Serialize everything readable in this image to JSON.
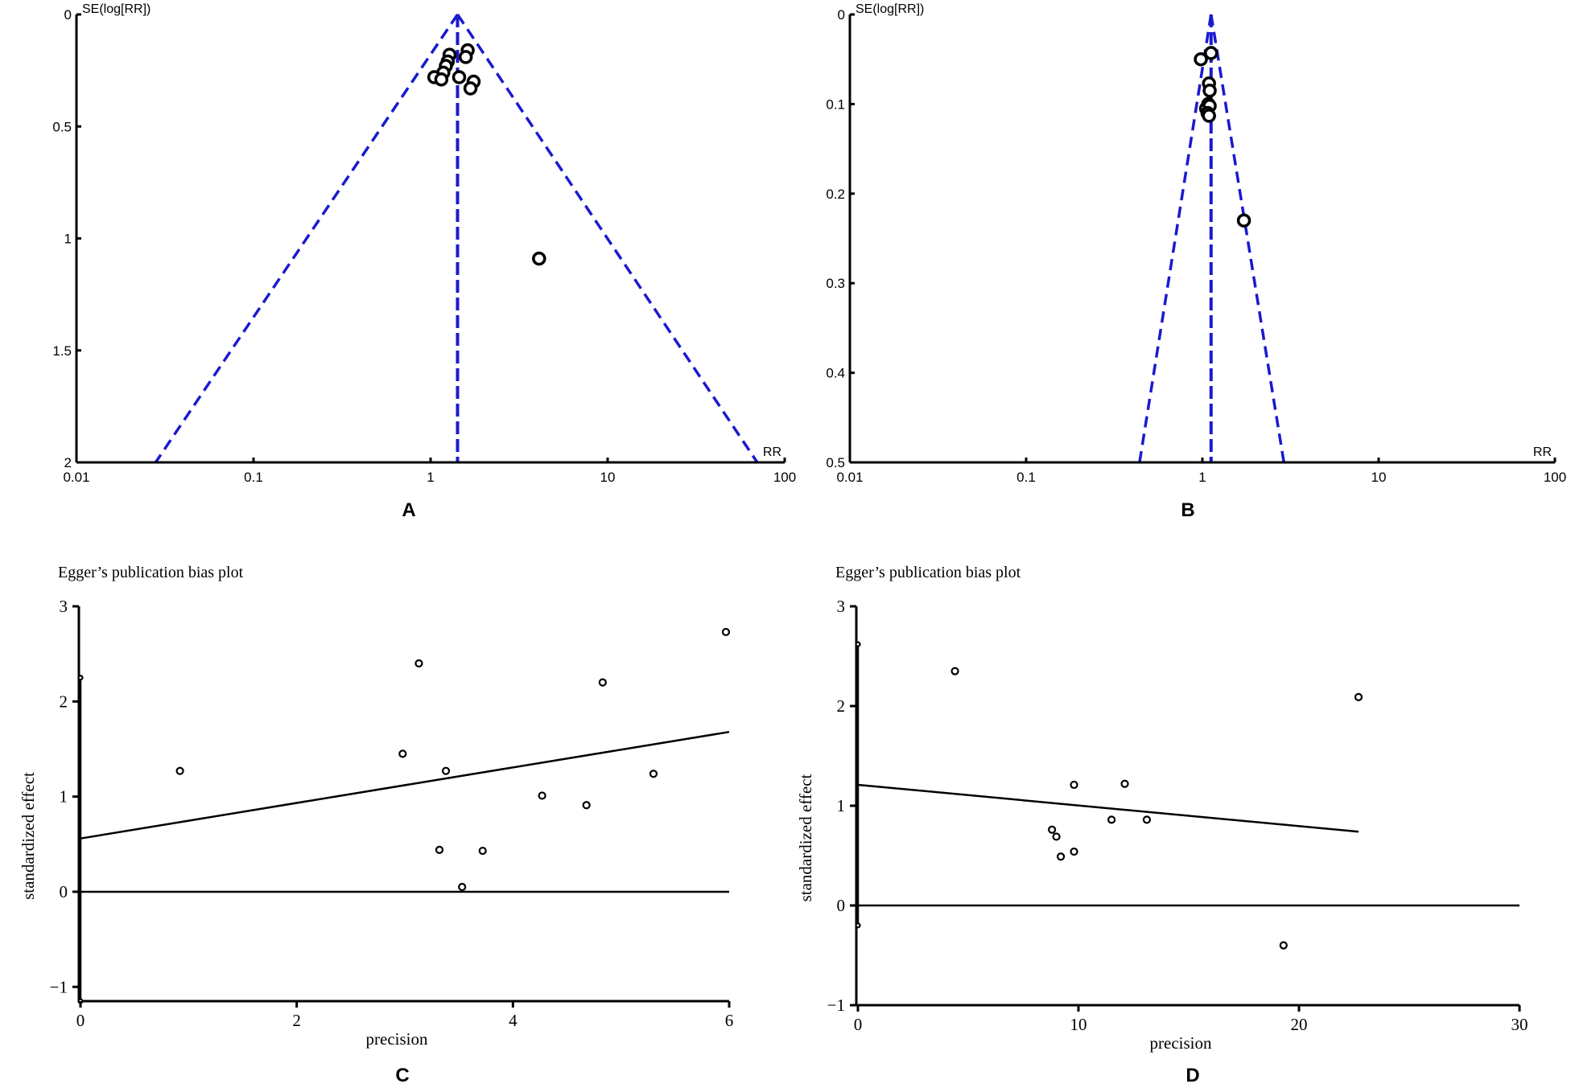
{
  "chart_data": [
    {
      "id": "A",
      "panel_label": "A",
      "type": "scatter",
      "subtype": "funnel",
      "title": "",
      "ylabel": "SE(log[RR])",
      "xlabel": "RR",
      "x_scale": "log",
      "xlim": [
        0.01,
        100
      ],
      "ylim": [
        0,
        2
      ],
      "y_inverted": true,
      "x_ticks": [
        0.01,
        0.1,
        1,
        10,
        100
      ],
      "x_tick_labels": [
        "0.01",
        "0.1",
        "1",
        "10",
        "100"
      ],
      "y_ticks": [
        0,
        0.5,
        1,
        1.5,
        2
      ],
      "y_tick_labels": [
        "0",
        "0.5",
        "1",
        "1.5",
        "2"
      ],
      "pooled_rr": 1.42,
      "funnel": {
        "apex": [
          1.42,
          0
        ],
        "lower_left": [
          0.028,
          2
        ],
        "lower_right": [
          70,
          2
        ]
      },
      "points": [
        {
          "rr": 1.62,
          "se": 0.16
        },
        {
          "rr": 1.28,
          "se": 0.18
        },
        {
          "rr": 1.25,
          "se": 0.21
        },
        {
          "rr": 1.58,
          "se": 0.19
        },
        {
          "rr": 1.22,
          "se": 0.23
        },
        {
          "rr": 1.18,
          "se": 0.26
        },
        {
          "rr": 1.05,
          "se": 0.28
        },
        {
          "rr": 1.15,
          "se": 0.29
        },
        {
          "rr": 1.45,
          "se": 0.28
        },
        {
          "rr": 1.75,
          "se": 0.3
        },
        {
          "rr": 1.68,
          "se": 0.33
        },
        {
          "rr": 4.1,
          "se": 1.09
        }
      ]
    },
    {
      "id": "B",
      "panel_label": "B",
      "type": "scatter",
      "subtype": "funnel",
      "title": "",
      "ylabel": "SE(log[RR])",
      "xlabel": "RR",
      "x_scale": "log",
      "xlim": [
        0.01,
        100
      ],
      "ylim": [
        0,
        0.5
      ],
      "y_inverted": true,
      "x_ticks": [
        0.01,
        0.1,
        1,
        10,
        100
      ],
      "x_tick_labels": [
        "0.01",
        "0.1",
        "1",
        "10",
        "100"
      ],
      "y_ticks": [
        0,
        0.1,
        0.2,
        0.3,
        0.4,
        0.5
      ],
      "y_tick_labels": [
        "0",
        "0.1",
        "0.2",
        "0.3",
        "0.4",
        "0.5"
      ],
      "pooled_rr": 1.12,
      "funnel": {
        "apex": [
          1.12,
          0
        ],
        "lower_left": [
          0.44,
          0.5
        ],
        "lower_right": [
          2.9,
          0.5
        ]
      },
      "points": [
        {
          "rr": 0.98,
          "se": 0.05
        },
        {
          "rr": 1.12,
          "se": 0.043
        },
        {
          "rr": 1.09,
          "se": 0.077
        },
        {
          "rr": 1.1,
          "se": 0.085
        },
        {
          "rr": 1.08,
          "se": 0.1
        },
        {
          "rr": 1.05,
          "se": 0.105
        },
        {
          "rr": 1.1,
          "se": 0.102
        },
        {
          "rr": 1.07,
          "se": 0.11
        },
        {
          "rr": 1.09,
          "se": 0.113
        },
        {
          "rr": 1.72,
          "se": 0.23
        }
      ]
    },
    {
      "id": "C",
      "panel_label": "C",
      "type": "scatter",
      "subtype": "egger",
      "title": "Egger’s publication bias plot",
      "xlabel": "precision",
      "ylabel": "standardized effect",
      "xlim": [
        0,
        6
      ],
      "ylim": [
        -1.15,
        3
      ],
      "x_ticks": [
        0,
        2,
        4,
        6
      ],
      "x_tick_labels": [
        "0",
        "2",
        "4",
        "6"
      ],
      "y_ticks": [
        -1,
        0,
        1,
        2,
        3
      ],
      "y_tick_labels": [
        "−1",
        "0",
        "1",
        "2",
        "3"
      ],
      "regression_line": {
        "x": [
          0,
          6
        ],
        "y": [
          0.56,
          1.68
        ]
      },
      "intercept_ci": [
        -1.15,
        2.25
      ],
      "points": [
        {
          "x": 0.92,
          "y": 1.27
        },
        {
          "x": 2.98,
          "y": 1.45
        },
        {
          "x": 3.13,
          "y": 2.4
        },
        {
          "x": 3.32,
          "y": 0.44
        },
        {
          "x": 3.38,
          "y": 1.27
        },
        {
          "x": 3.53,
          "y": 0.05
        },
        {
          "x": 3.72,
          "y": 0.43
        },
        {
          "x": 4.27,
          "y": 1.01
        },
        {
          "x": 4.68,
          "y": 0.91
        },
        {
          "x": 4.83,
          "y": 2.2
        },
        {
          "x": 5.3,
          "y": 1.24
        },
        {
          "x": 5.97,
          "y": 2.73
        }
      ]
    },
    {
      "id": "D",
      "panel_label": "D",
      "type": "scatter",
      "subtype": "egger",
      "title": "Egger’s publication bias plot",
      "xlabel": "precision",
      "ylabel": "standardized effect",
      "xlim": [
        0,
        30
      ],
      "ylim": [
        -1,
        3
      ],
      "x_ticks": [
        0,
        10,
        20,
        30
      ],
      "x_tick_labels": [
        "0",
        "10",
        "20",
        "30"
      ],
      "y_ticks": [
        -1,
        0,
        1,
        2,
        3
      ],
      "y_tick_labels": [
        "−1",
        "0",
        "1",
        "2",
        "3"
      ],
      "regression_line": {
        "x": [
          0,
          22.7
        ],
        "y": [
          1.21,
          0.74
        ]
      },
      "intercept_ci": [
        -0.2,
        2.62
      ],
      "points": [
        {
          "x": 4.4,
          "y": 2.35
        },
        {
          "x": 8.8,
          "y": 0.76
        },
        {
          "x": 9.0,
          "y": 0.69
        },
        {
          "x": 9.2,
          "y": 0.49
        },
        {
          "x": 9.8,
          "y": 1.21
        },
        {
          "x": 9.8,
          "y": 0.54
        },
        {
          "x": 11.5,
          "y": 0.86
        },
        {
          "x": 12.1,
          "y": 1.22
        },
        {
          "x": 13.1,
          "y": 0.86
        },
        {
          "x": 19.3,
          "y": -0.4
        },
        {
          "x": 22.7,
          "y": 2.09
        }
      ]
    }
  ]
}
